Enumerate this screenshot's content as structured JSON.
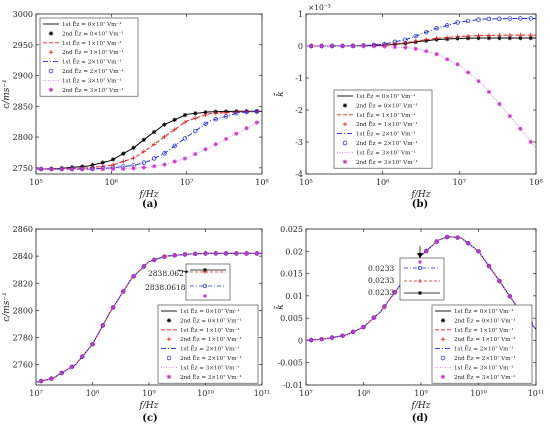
{
  "chart_data": [
    {
      "type": "line",
      "panel": "(a)",
      "caption": "(a)",
      "xlabel": "f/Hz",
      "ylabel": "c/ms⁻¹",
      "xscale": "log",
      "xlim": [
        100000,
        100000000
      ],
      "ylim": [
        2740,
        3000
      ],
      "xticks": [
        100000,
        1000000,
        10000000,
        100000000
      ],
      "xtick_labels": [
        "10⁵",
        "10⁶",
        "10⁷",
        "10⁸"
      ],
      "yticks": [
        2750,
        2800,
        2850,
        2900,
        2950,
        3000
      ],
      "ytick_labels": [
        "2750",
        "2800",
        "2850",
        "2900",
        "2950",
        "3000"
      ],
      "legend_position": "top-left",
      "x": [
        100000,
        200000,
        500000,
        1000000,
        2000000,
        3000000,
        5000000,
        10000000,
        20000000,
        50000000,
        100000000
      ],
      "series": [
        {
          "name": "1st Ēz = 0×10⁷ Vm⁻¹",
          "values": [
            2748,
            2749,
            2753,
            2762,
            2783,
            2800,
            2820,
            2837,
            2841,
            2842,
            2842
          ]
        },
        {
          "name": "2nd Ēz = 0×10⁷ Vm⁻¹",
          "values": [
            2748,
            2749,
            2753,
            2762,
            2783,
            2800,
            2820,
            2837,
            2841,
            2842,
            2842
          ]
        },
        {
          "name": "1st Ēz = 1×10⁷ Vm⁻¹",
          "values": [
            2748,
            2748,
            2750,
            2754,
            2766,
            2780,
            2800,
            2826,
            2838,
            2841,
            2842
          ]
        },
        {
          "name": "2nd Ēz = 1×10⁷ Vm⁻¹",
          "values": [
            2748,
            2748,
            2750,
            2754,
            2766,
            2780,
            2800,
            2826,
            2838,
            2841,
            2842
          ]
        },
        {
          "name": "1st Ēz = 2×10⁷ Vm⁻¹",
          "values": [
            2748,
            2748,
            2748,
            2750,
            2754,
            2760,
            2773,
            2800,
            2826,
            2840,
            2842
          ]
        },
        {
          "name": "2nd Ēz = 2×10⁷ Vm⁻¹",
          "values": [
            2748,
            2748,
            2748,
            2750,
            2754,
            2760,
            2773,
            2800,
            2826,
            2840,
            2842
          ]
        },
        {
          "name": "1st Ēz = 3×10⁷ Vm⁻¹",
          "values": [
            2748,
            2748,
            2748,
            2748,
            2749,
            2751,
            2755,
            2766,
            2783,
            2808,
            2828
          ]
        },
        {
          "name": "2nd Ēz = 3×10⁷ Vm⁻¹",
          "values": [
            2748,
            2748,
            2748,
            2748,
            2749,
            2751,
            2755,
            2766,
            2783,
            2808,
            2828
          ]
        }
      ]
    },
    {
      "type": "line",
      "panel": "(b)",
      "caption": "(b)",
      "xlabel": "f/Hz",
      "ylabel": "k̄",
      "multiplier": "×10⁻³",
      "xscale": "log",
      "xlim": [
        100000,
        100000000
      ],
      "ylim": [
        -4,
        1
      ],
      "xticks": [
        100000,
        1000000,
        10000000,
        100000000
      ],
      "xtick_labels": [
        "10⁵",
        "10⁶",
        "10⁷",
        "10⁸"
      ],
      "yticks": [
        -4,
        -3,
        -2,
        -1,
        0,
        1
      ],
      "ytick_labels": [
        "-4",
        "-3",
        "-2",
        "-1",
        "0",
        "1"
      ],
      "legend_position": "bottom-left",
      "x": [
        100000,
        200000,
        500000,
        1000000,
        2000000,
        3000000,
        5000000,
        10000000,
        20000000,
        50000000,
        100000000
      ],
      "series": [
        {
          "name": "1st Ēz = 0×10⁷ Vm⁻¹",
          "values": [
            0,
            0,
            0,
            0.02,
            0.08,
            0.14,
            0.2,
            0.24,
            0.25,
            0.25,
            0.25
          ]
        },
        {
          "name": "2nd Ēz = 0×10⁷ Vm⁻¹",
          "values": [
            0,
            0,
            0,
            0.02,
            0.08,
            0.14,
            0.2,
            0.24,
            0.25,
            0.25,
            0.25
          ]
        },
        {
          "name": "1st Ēz = 1×10⁷ Vm⁻¹",
          "values": [
            0,
            0,
            0,
            0.03,
            0.1,
            0.17,
            0.24,
            0.3,
            0.33,
            0.34,
            0.34
          ]
        },
        {
          "name": "2nd Ēz = 1×10⁷ Vm⁻¹",
          "values": [
            0,
            0,
            0,
            0.03,
            0.1,
            0.17,
            0.24,
            0.3,
            0.33,
            0.34,
            0.34
          ]
        },
        {
          "name": "1st Ēz = 2×10⁷ Vm⁻¹",
          "values": [
            0,
            0,
            0.01,
            0.05,
            0.2,
            0.35,
            0.55,
            0.75,
            0.84,
            0.86,
            0.86
          ]
        },
        {
          "name": "2nd Ēz = 2×10⁷ Vm⁻¹",
          "values": [
            0,
            0,
            0.01,
            0.05,
            0.2,
            0.35,
            0.55,
            0.75,
            0.84,
            0.86,
            0.86
          ]
        },
        {
          "name": "1st Ēz = 3×10⁷ Vm⁻¹",
          "values": [
            0,
            0,
            0,
            -0.01,
            -0.05,
            -0.1,
            -0.25,
            -0.6,
            -1.2,
            -2.3,
            -3.2
          ]
        },
        {
          "name": "2nd Ēz = 3×10⁷ Vm⁻¹",
          "values": [
            0,
            0,
            0,
            -0.01,
            -0.05,
            -0.1,
            -0.25,
            -0.6,
            -1.2,
            -2.3,
            -3.2
          ]
        }
      ]
    },
    {
      "type": "line",
      "panel": "(c)",
      "caption": "(c)",
      "xlabel": "f/Hz",
      "ylabel": "c/ms⁻¹",
      "xscale": "log",
      "xlim": [
        10000000,
        100000000000
      ],
      "ylim": [
        2745,
        2860
      ],
      "xticks": [
        10000000,
        100000000,
        1000000000,
        10000000000,
        100000000000
      ],
      "xtick_labels": [
        "10⁷",
        "10⁸",
        "10⁹",
        "10¹⁰",
        "10¹¹"
      ],
      "yticks": [
        2760,
        2780,
        2800,
        2820,
        2840,
        2860
      ],
      "ytick_labels": [
        "2760",
        "2780",
        "2800",
        "2820",
        "2840",
        "2860"
      ],
      "legend_position": "bottom-right",
      "annotations": [
        "2838.062",
        "2838.0618"
      ],
      "x": [
        10000000,
        20000000,
        50000000,
        100000000,
        200000000,
        500000000,
        1000000000,
        2000000000,
        5000000000,
        10000000000,
        100000000000
      ],
      "series": [
        {
          "name": "1st Ēz = 0×10⁷ Vm⁻¹",
          "values": [
            2747,
            2750,
            2760,
            2775,
            2798,
            2824,
            2836,
            2840,
            2841.5,
            2842,
            2842
          ]
        },
        {
          "name": "2nd Ēz = 0×10⁷ Vm⁻¹",
          "values": [
            2747,
            2750,
            2760,
            2775,
            2798,
            2824,
            2836,
            2840,
            2841.5,
            2842,
            2842
          ]
        },
        {
          "name": "1st Ēz = 1×10⁷ Vm⁻¹",
          "values": [
            2747,
            2750,
            2760,
            2775,
            2798,
            2824,
            2836,
            2840,
            2841.5,
            2842,
            2842
          ]
        },
        {
          "name": "2nd Ēz = 1×10⁷ Vm⁻¹",
          "values": [
            2747,
            2750,
            2760,
            2775,
            2798,
            2824,
            2836,
            2840,
            2841.5,
            2842,
            2842
          ]
        },
        {
          "name": "1st Ēz = 2×10⁷ Vm⁻¹",
          "values": [
            2747,
            2750,
            2760,
            2775,
            2798,
            2824,
            2836,
            2840,
            2841.5,
            2842,
            2842
          ]
        },
        {
          "name": "2nd Ēz = 2×10⁷ Vm⁻¹",
          "values": [
            2747,
            2750,
            2760,
            2775,
            2798,
            2824,
            2836,
            2840,
            2841.5,
            2842,
            2842
          ]
        },
        {
          "name": "1st Ēz = 3×10⁷ Vm⁻¹",
          "values": [
            2747,
            2750,
            2760,
            2775,
            2798,
            2824,
            2836,
            2840,
            2841.5,
            2842,
            2842
          ]
        },
        {
          "name": "2nd Ēz = 3×10⁷ Vm⁻¹",
          "values": [
            2747,
            2750,
            2760,
            2775,
            2798,
            2824,
            2836,
            2840,
            2841.5,
            2842,
            2842
          ]
        }
      ]
    },
    {
      "type": "line",
      "panel": "(d)",
      "caption": "(d)",
      "xlabel": "f/Hz",
      "ylabel": "k̄",
      "xscale": "log",
      "xlim": [
        10000000,
        100000000000
      ],
      "ylim": [
        -0.01,
        0.025
      ],
      "xticks": [
        10000000,
        100000000,
        1000000000,
        10000000000,
        100000000000
      ],
      "xtick_labels": [
        "10⁷",
        "10⁸",
        "10⁹",
        "10¹⁰",
        "10¹¹"
      ],
      "yticks": [
        -0.01,
        -0.005,
        0,
        0.005,
        0.01,
        0.015,
        0.02,
        0.025
      ],
      "ytick_labels": [
        "-0.01",
        "-0.005",
        "0",
        "0.005",
        "0.01",
        "0.015",
        "0.02",
        "0.025"
      ],
      "legend_position": "bottom-right",
      "annotations": [
        "0.0233",
        "0.0233",
        "0.0233"
      ],
      "x": [
        10000000,
        20000000,
        50000000,
        100000000,
        200000000,
        500000000,
        1000000000,
        2000000000,
        3000000000,
        5000000000,
        10000000000,
        20000000000,
        50000000000,
        100000000000
      ],
      "series": [
        {
          "name": "1st Ēz = 0×10⁷ Vm⁻¹",
          "values": [
            0,
            0.0003,
            0.0012,
            0.003,
            0.0065,
            0.0135,
            0.019,
            0.0225,
            0.0233,
            0.023,
            0.02,
            0.0145,
            0.007,
            0.0025
          ]
        },
        {
          "name": "2nd Ēz = 0×10⁷ Vm⁻¹",
          "values": [
            0,
            0.0003,
            0.0012,
            0.003,
            0.0065,
            0.0135,
            0.019,
            0.0225,
            0.0233,
            0.023,
            0.02,
            0.0145,
            0.007,
            0.0025
          ]
        },
        {
          "name": "1st Ēz = 1×10⁷ Vm⁻¹",
          "values": [
            0,
            0.0003,
            0.0012,
            0.003,
            0.0065,
            0.0135,
            0.019,
            0.0225,
            0.0233,
            0.023,
            0.02,
            0.0145,
            0.007,
            0.0025
          ]
        },
        {
          "name": "2nd Ēz = 1×10⁷ Vm⁻¹",
          "values": [
            0,
            0.0003,
            0.0012,
            0.003,
            0.0065,
            0.0135,
            0.019,
            0.0225,
            0.0233,
            0.023,
            0.02,
            0.0145,
            0.007,
            0.0025
          ]
        },
        {
          "name": "1st Ēz = 2×10⁷ Vm⁻¹",
          "values": [
            0,
            0.0003,
            0.0012,
            0.003,
            0.0065,
            0.0135,
            0.019,
            0.0225,
            0.0233,
            0.023,
            0.02,
            0.0145,
            0.007,
            0.0025
          ]
        },
        {
          "name": "2nd Ēz = 2×10⁷ Vm⁻¹",
          "values": [
            0,
            0.0003,
            0.0012,
            0.003,
            0.0065,
            0.0135,
            0.019,
            0.0225,
            0.0233,
            0.023,
            0.02,
            0.0145,
            0.007,
            0.0025
          ]
        },
        {
          "name": "1st Ēz = 3×10⁷ Vm⁻¹",
          "values": [
            0,
            0.0003,
            0.0012,
            0.003,
            0.0065,
            0.0135,
            0.019,
            0.0225,
            0.0233,
            0.023,
            0.02,
            0.0145,
            0.007,
            0.0025
          ]
        },
        {
          "name": "2nd Ēz = 3×10⁷ Vm⁻¹",
          "values": [
            0,
            0.0003,
            0.0012,
            0.003,
            0.0065,
            0.0135,
            0.019,
            0.0225,
            0.0233,
            0.023,
            0.02,
            0.0145,
            0.007,
            0.0025
          ]
        }
      ]
    }
  ],
  "series_styles": [
    {
      "color": "#000000",
      "dash": "",
      "marker": "none"
    },
    {
      "color": "#000000",
      "dash": "none",
      "marker": "star"
    },
    {
      "color": "#e0201b",
      "dash": "4,2",
      "marker": "none"
    },
    {
      "color": "#e0201b",
      "dash": "none",
      "marker": "plus"
    },
    {
      "color": "#1f2bd6",
      "dash": "5,2,1,2",
      "marker": "none"
    },
    {
      "color": "#1f2bd6",
      "dash": "none",
      "marker": "circle"
    },
    {
      "color": "#e87fe8",
      "dash": "1,1.5",
      "marker": "none"
    },
    {
      "color": "#cc33cc",
      "dash": "none",
      "marker": "star"
    }
  ]
}
